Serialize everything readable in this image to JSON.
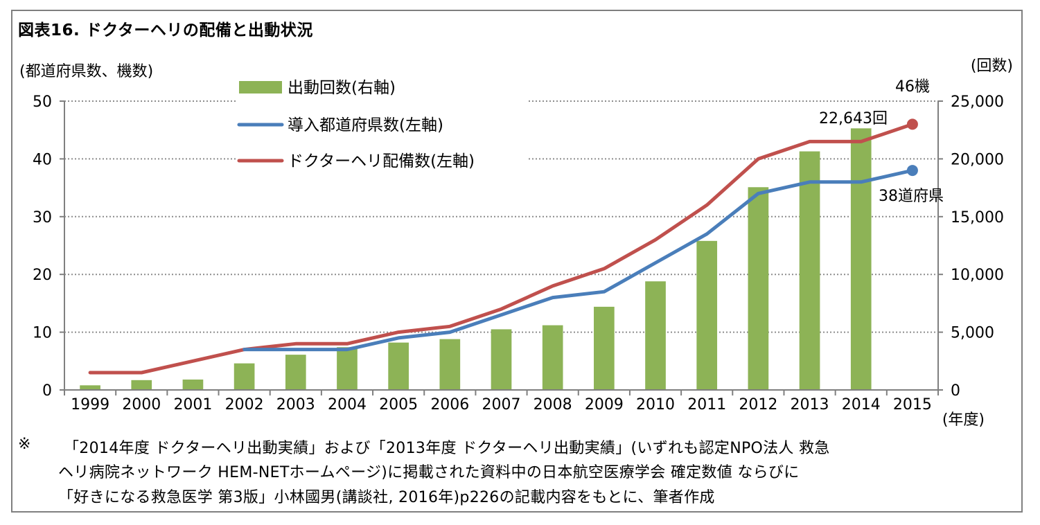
{
  "title": "図表16. ドクターヘリの配備と出動状況",
  "chart_data": {
    "type": "bar+line",
    "y_left_label": "(都道府県数、機数)",
    "y_right_label": "(回数)",
    "x_label": "(年度)",
    "y_left_ticks": [
      "0",
      "10",
      "20",
      "30",
      "40",
      "50"
    ],
    "y_right_ticks": [
      "0",
      "5,000",
      "10,000",
      "15,000",
      "20,000",
      "25,000"
    ],
    "ylim_left": [
      0,
      50
    ],
    "ylim_right": [
      0,
      25000
    ],
    "categories": [
      "1999",
      "2000",
      "2001",
      "2002",
      "2003",
      "2004",
      "2005",
      "2006",
      "2007",
      "2008",
      "2009",
      "2010",
      "2011",
      "2012",
      "2013",
      "2014",
      "2015"
    ],
    "series": [
      {
        "name": "出動回数(右軸)",
        "type": "bar",
        "axis": "right",
        "color": "#8db356",
        "values": [
          400,
          850,
          900,
          2300,
          3050,
          3700,
          4100,
          4400,
          5250,
          5600,
          7200,
          9400,
          12900,
          17550,
          20650,
          22643,
          null
        ]
      },
      {
        "name": "導入都道府県数(左軸)",
        "type": "line",
        "axis": "left",
        "color": "#4a7eba",
        "values": [
          null,
          null,
          null,
          7,
          7,
          7,
          9,
          10,
          13,
          16,
          17,
          22,
          27,
          34,
          36,
          36,
          38
        ]
      },
      {
        "name": "ドクターヘリ配備数(左軸)",
        "type": "line",
        "axis": "left",
        "color": "#c0504d",
        "values": [
          3,
          3,
          5,
          7,
          8,
          8,
          10,
          11,
          14,
          18,
          21,
          26,
          32,
          40,
          43,
          43,
          46
        ]
      }
    ],
    "annotations": [
      {
        "text": "46機"
      },
      {
        "text": "22,643回"
      },
      {
        "text": "38道府県"
      }
    ]
  },
  "note": {
    "mark": "※",
    "lines": [
      "「2014年度 ドクターヘリ出動実績」および「2013年度 ドクターヘリ出動実績」(いずれも認定NPO法人 救急",
      "ヘリ病院ネットワーク HEM-NETホームページ)に掲載された資料中の日本航空医療学会 確定数値 ならびに",
      "「好きになる救急医学 第3版」小林國男(講談社, 2016年)p226の記載内容をもとに、筆者作成"
    ]
  }
}
